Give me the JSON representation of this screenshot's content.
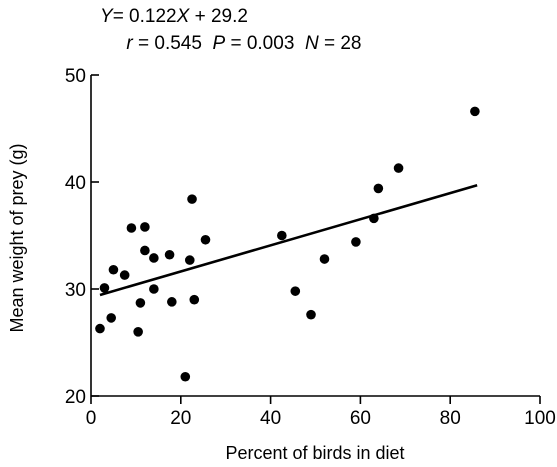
{
  "chart_data": {
    "type": "scatter",
    "annotations": {
      "equation": [
        "Y",
        "= 0.122",
        "X",
        " + 29.2"
      ],
      "stats": [
        "r",
        " = 0.545  ",
        "P",
        " = 0.003  ",
        "N",
        " = 28"
      ]
    },
    "xlabel": "Percent of birds in diet",
    "ylabel": "Mean weight of prey (g)",
    "xlim": [
      0,
      100
    ],
    "ylim": [
      20,
      50
    ],
    "xticks": [
      0,
      20,
      40,
      60,
      80,
      100
    ],
    "yticks": [
      20,
      30,
      40,
      50
    ],
    "grid": false,
    "regression": {
      "slope": 0.122,
      "intercept": 29.2,
      "x_range": [
        2,
        86
      ]
    },
    "points": [
      {
        "x": 2,
        "y": 26.3
      },
      {
        "x": 3,
        "y": 30.1
      },
      {
        "x": 4.5,
        "y": 27.3
      },
      {
        "x": 5,
        "y": 31.8
      },
      {
        "x": 7.5,
        "y": 31.3
      },
      {
        "x": 9,
        "y": 35.7
      },
      {
        "x": 10.5,
        "y": 26
      },
      {
        "x": 11,
        "y": 28.7
      },
      {
        "x": 12,
        "y": 35.8
      },
      {
        "x": 12,
        "y": 33.6
      },
      {
        "x": 14,
        "y": 30
      },
      {
        "x": 14,
        "y": 32.9
      },
      {
        "x": 17.5,
        "y": 33.2
      },
      {
        "x": 18,
        "y": 28.8
      },
      {
        "x": 21,
        "y": 21.8
      },
      {
        "x": 22,
        "y": 32.7
      },
      {
        "x": 22.5,
        "y": 38.4
      },
      {
        "x": 23,
        "y": 29
      },
      {
        "x": 25.5,
        "y": 34.6
      },
      {
        "x": 42.5,
        "y": 35
      },
      {
        "x": 45.5,
        "y": 29.8
      },
      {
        "x": 49,
        "y": 27.6
      },
      {
        "x": 52,
        "y": 32.8
      },
      {
        "x": 59,
        "y": 34.4
      },
      {
        "x": 63,
        "y": 36.6
      },
      {
        "x": 64,
        "y": 39.4
      },
      {
        "x": 68.5,
        "y": 41.3
      },
      {
        "x": 85.5,
        "y": 46.6
      }
    ]
  }
}
